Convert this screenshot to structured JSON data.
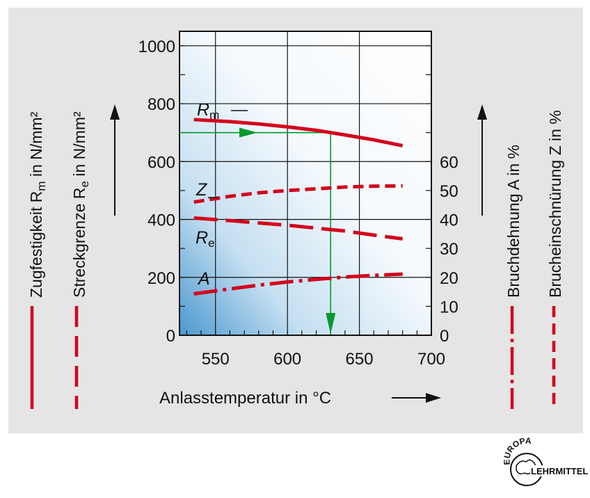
{
  "chart_data": {
    "type": "line",
    "xlabel": "Anlasstemperatur in °C",
    "xlim": [
      525,
      700
    ],
    "x_ticks": [
      550,
      600,
      650,
      700
    ],
    "ylim_left": [
      0,
      1050
    ],
    "y_ticks_left": [
      0,
      200,
      400,
      600,
      800,
      1000
    ],
    "ylim_right": [
      0,
      105
    ],
    "y_ticks_right": [
      0,
      10,
      20,
      30,
      40,
      50,
      60
    ],
    "left_axis_titles": [
      {
        "text": "Zugfestigkeit R",
        "sub": "m",
        "tail": " in N/mm²",
        "line_style": "solid"
      },
      {
        "text": "Streckgrenze R",
        "sub": "e",
        "tail": " in N/mm²",
        "line_style": "dashed"
      }
    ],
    "right_axis_titles": [
      {
        "text": "Bruchdehnung A in %",
        "line_style": "dashdot"
      },
      {
        "text": "Brucheinschnürung Z in %",
        "line_style": "short-dash"
      }
    ],
    "series": [
      {
        "name": "R",
        "sub": "m",
        "axis": "left",
        "style": "solid",
        "x": [
          535,
          560,
          580,
          600,
          620,
          640,
          660,
          680
        ],
        "values": [
          745,
          738,
          730,
          720,
          708,
          692,
          675,
          655
        ]
      },
      {
        "name": "Z",
        "sub": "",
        "axis": "right",
        "style": "short-dash",
        "x": [
          535,
          560,
          580,
          600,
          620,
          640,
          660,
          680
        ],
        "values": [
          46,
          48,
          49.2,
          50,
          50.6,
          51.2,
          51.5,
          51.6
        ]
      },
      {
        "name": "R",
        "sub": "e",
        "axis": "left",
        "style": "dashed",
        "x": [
          535,
          560,
          580,
          600,
          620,
          640,
          660,
          680
        ],
        "values": [
          405,
          396,
          388,
          380,
          370,
          360,
          346,
          333
        ]
      },
      {
        "name": "A",
        "sub": "",
        "axis": "right",
        "style": "dashdot",
        "x": [
          535,
          560,
          580,
          600,
          620,
          640,
          660,
          680
        ],
        "values": [
          14.3,
          16,
          17.3,
          18.4,
          19.3,
          20.1,
          20.7,
          21.1
        ]
      }
    ],
    "annotation": {
      "x": 630,
      "y": 700
    },
    "grid": true,
    "colors": {
      "curves": "#d4001b",
      "annotation": "#009a2e",
      "plot_bg_light": "#ffffff",
      "plot_bg_dark": "#0f79b7"
    }
  },
  "logo": {
    "top": "EUROPA",
    "bottom": "LEHRMITTEL"
  }
}
